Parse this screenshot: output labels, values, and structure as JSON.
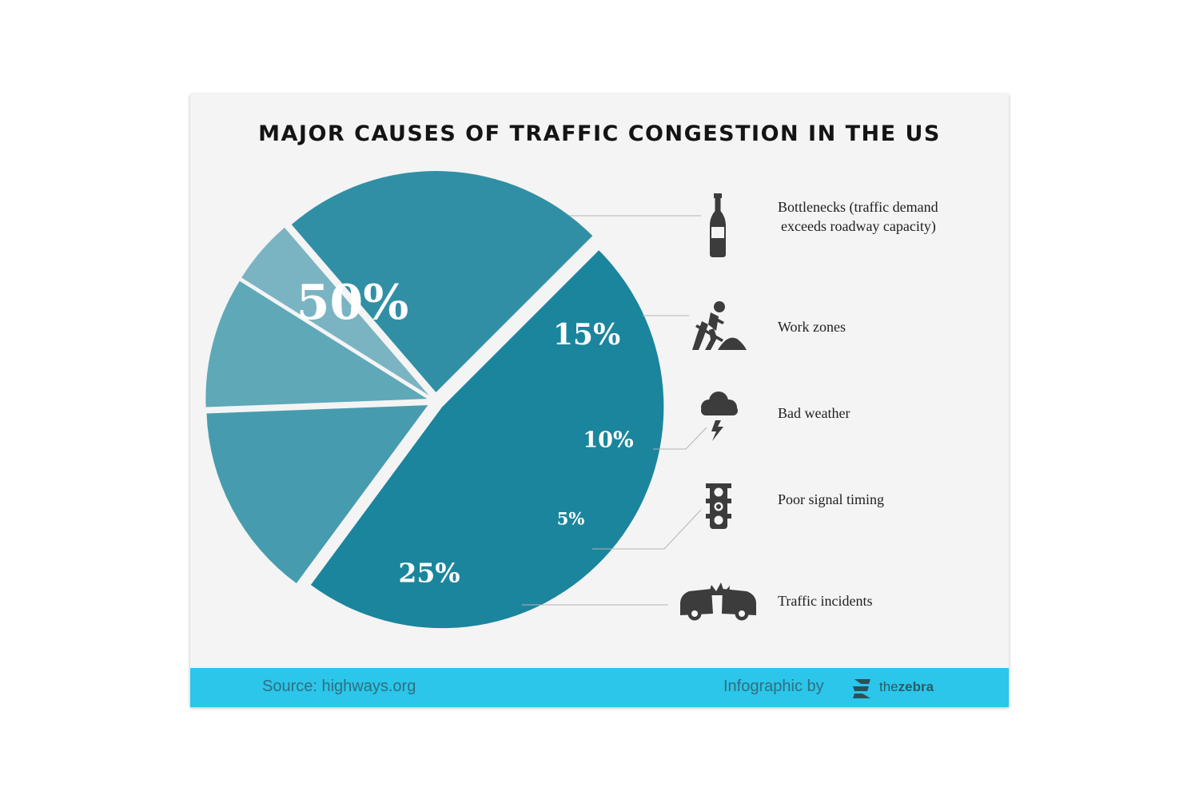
{
  "chart_data": {
    "type": "pie",
    "title": "MAJOR CAUSES OF TRAFFIC CONGESTION IN THE US",
    "slices": [
      {
        "label": "Bottlenecks (traffic demand exceeds roadway capacity)",
        "label_lines": [
          "Bottlenecks (traffic demand",
          "exceeds roadway capacity)"
        ],
        "value": 50,
        "value_label": "50%",
        "icon": "wine-bottle-icon",
        "color": "#1b859d"
      },
      {
        "label": "Work zones",
        "label_lines": [
          "Work zones"
        ],
        "value": 15,
        "value_label": "15%",
        "icon": "road-worker-icon",
        "color": "#469cae"
      },
      {
        "label": "Bad weather",
        "label_lines": [
          "Bad weather"
        ],
        "value": 10,
        "value_label": "10%",
        "icon": "storm-cloud-icon",
        "color": "#5ea8b8"
      },
      {
        "label": "Poor signal timing",
        "label_lines": [
          "Poor signal timing"
        ],
        "value": 5,
        "value_label": "5%",
        "icon": "traffic-light-icon",
        "color": "#7ab4c3"
      },
      {
        "label": "Traffic incidents",
        "label_lines": [
          "Traffic incidents"
        ],
        "value": 25,
        "value_label": "25%",
        "icon": "car-crash-icon",
        "color": "#318fa5"
      }
    ],
    "legend": "right"
  },
  "footer": {
    "source": "Source: highways.org",
    "credit": "Infographic by",
    "brand_light": "the",
    "brand_bold": "zebra"
  }
}
